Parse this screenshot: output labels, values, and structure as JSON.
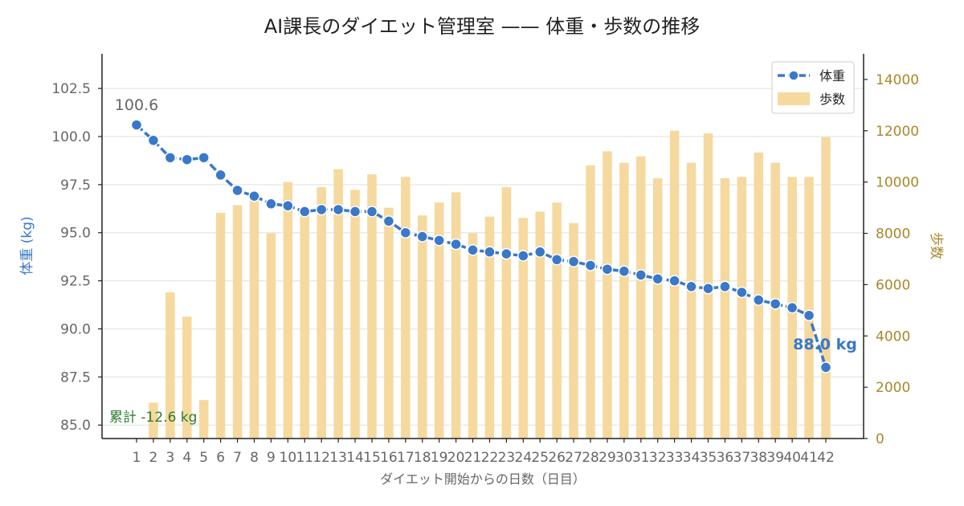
{
  "chart_data": {
    "type": "bar+line",
    "title": "AI課長のダイエット管理室 —— 体重・歩数の推移",
    "xlabel": "ダイエット開始からの日数（日目）",
    "ylabel_left": "体重 (kg)",
    "ylabel_right": "歩数",
    "x": [
      1,
      2,
      3,
      4,
      5,
      6,
      7,
      8,
      9,
      10,
      11,
      12,
      13,
      14,
      15,
      16,
      17,
      18,
      19,
      20,
      21,
      22,
      23,
      24,
      25,
      26,
      27,
      28,
      29,
      30,
      31,
      32,
      33,
      34,
      35,
      36,
      37,
      38,
      39,
      40,
      41,
      42
    ],
    "x_tick_labels": [
      "1",
      "2",
      "3",
      "4",
      "5",
      "6",
      "7",
      "8",
      "9",
      "10",
      "11",
      "12",
      "13",
      "14",
      "15",
      "16",
      "17",
      "18",
      "19",
      "20",
      "21",
      "22",
      "23",
      "24",
      "25",
      "26",
      "27",
      "28",
      "29",
      "30",
      "31",
      "32",
      "33",
      "34",
      "35",
      "36",
      "37",
      "38",
      "39",
      "40",
      "41",
      "42"
    ],
    "ylim_left": [
      84.3,
      104.3
    ],
    "yticks_left": [
      85.0,
      87.5,
      90.0,
      92.5,
      95.0,
      97.5,
      100.0,
      102.5
    ],
    "ytick_labels_left": [
      "85.0",
      "87.5",
      "90.0",
      "92.5",
      "95.0",
      "97.5",
      "100.0",
      "102.5"
    ],
    "ylim_right": [
      0,
      15000
    ],
    "yticks_right": [
      0,
      2000,
      4000,
      6000,
      8000,
      10000,
      12000,
      14000
    ],
    "ytick_labels_right": [
      "0",
      "2000",
      "4000",
      "6000",
      "8000",
      "10000",
      "12000",
      "14000"
    ],
    "grid": true,
    "legend_position": "top-right",
    "series": [
      {
        "name": "体重",
        "kind": "line",
        "axis": "left",
        "color": "#3a78c9",
        "values": [
          100.6,
          99.8,
          98.9,
          98.8,
          98.9,
          98.0,
          97.2,
          96.9,
          96.5,
          96.4,
          96.1,
          96.2,
          96.2,
          96.1,
          96.1,
          95.6,
          95.0,
          94.8,
          94.6,
          94.4,
          94.1,
          94.0,
          93.9,
          93.8,
          94.0,
          93.6,
          93.5,
          93.3,
          93.1,
          93.0,
          92.8,
          92.6,
          92.5,
          92.2,
          92.1,
          92.2,
          91.9,
          91.5,
          91.3,
          91.1,
          90.7,
          88.0
        ]
      },
      {
        "name": "歩数",
        "kind": "bar",
        "axis": "right",
        "color": "#f5d99e",
        "values": [
          0,
          1400,
          5700,
          4750,
          1500,
          8800,
          9100,
          9300,
          8000,
          10000,
          8800,
          9800,
          10500,
          9700,
          10300,
          9000,
          10200,
          8700,
          9200,
          9600,
          8000,
          8650,
          9800,
          8600,
          8850,
          9200,
          8400,
          10650,
          11200,
          10750,
          11000,
          10150,
          12000,
          10750,
          11900,
          10150,
          10200,
          11150,
          10750,
          10200,
          10200,
          11750
        ]
      }
    ],
    "annotations": {
      "start_label": "100.6",
      "end_label": "88.0 kg",
      "total_label": "累計 -12.6 kg"
    },
    "colors": {
      "weight": "#3a78c9",
      "steps": "#f5d99e",
      "right_axis": "#a8872a",
      "total": "#2e7d32",
      "text": "#222222",
      "tick": "#666666"
    }
  }
}
